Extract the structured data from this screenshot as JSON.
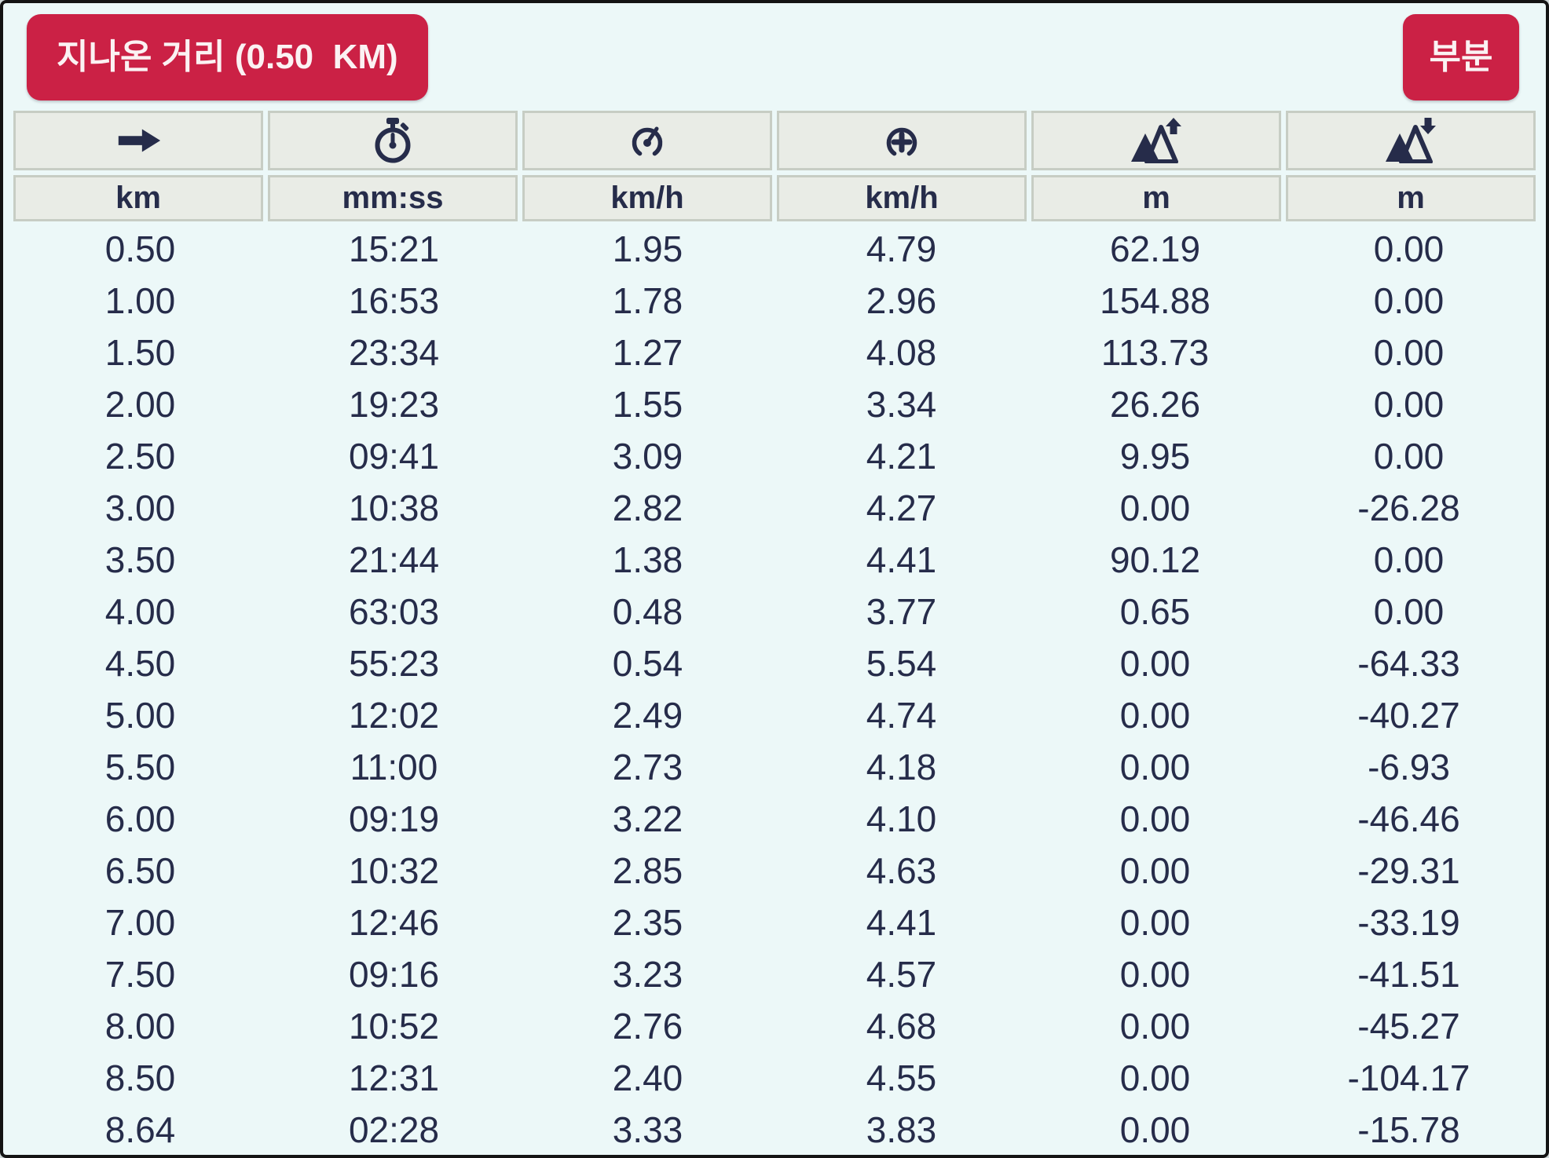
{
  "page": {
    "title_button": "지나온 거리 (0.50  KM)",
    "partial_button": "부분"
  },
  "colors": {
    "accent_red": "#cb2145",
    "text_navy": "#262c4a",
    "page_background": "#ecf8f8",
    "header_cell_background": "#e9ece6",
    "header_cell_border": "#c7cdc4",
    "frame_border": "#141414"
  },
  "table": {
    "columns": [
      {
        "icon": "arrow-right-icon",
        "meaning": "distance",
        "unit": "km"
      },
      {
        "icon": "stopwatch-icon",
        "meaning": "split-time",
        "unit": "mm:ss"
      },
      {
        "icon": "speedometer-icon",
        "meaning": "avg-speed",
        "unit": "km/h"
      },
      {
        "icon": "speedometer-plus-icon",
        "meaning": "max-speed",
        "unit": "km/h"
      },
      {
        "icon": "mountain-ascent-icon",
        "meaning": "ascent",
        "unit": "m"
      },
      {
        "icon": "mountain-descent-icon",
        "meaning": "descent",
        "unit": "m"
      }
    ],
    "rows": [
      [
        "0.50",
        "15:21",
        "1.95",
        "4.79",
        "62.19",
        "0.00"
      ],
      [
        "1.00",
        "16:53",
        "1.78",
        "2.96",
        "154.88",
        "0.00"
      ],
      [
        "1.50",
        "23:34",
        "1.27",
        "4.08",
        "113.73",
        "0.00"
      ],
      [
        "2.00",
        "19:23",
        "1.55",
        "3.34",
        "26.26",
        "0.00"
      ],
      [
        "2.50",
        "09:41",
        "3.09",
        "4.21",
        "9.95",
        "0.00"
      ],
      [
        "3.00",
        "10:38",
        "2.82",
        "4.27",
        "0.00",
        "-26.28"
      ],
      [
        "3.50",
        "21:44",
        "1.38",
        "4.41",
        "90.12",
        "0.00"
      ],
      [
        "4.00",
        "63:03",
        "0.48",
        "3.77",
        "0.65",
        "0.00"
      ],
      [
        "4.50",
        "55:23",
        "0.54",
        "5.54",
        "0.00",
        "-64.33"
      ],
      [
        "5.00",
        "12:02",
        "2.49",
        "4.74",
        "0.00",
        "-40.27"
      ],
      [
        "5.50",
        "11:00",
        "2.73",
        "4.18",
        "0.00",
        "-6.93"
      ],
      [
        "6.00",
        "09:19",
        "3.22",
        "4.10",
        "0.00",
        "-46.46"
      ],
      [
        "6.50",
        "10:32",
        "2.85",
        "4.63",
        "0.00",
        "-29.31"
      ],
      [
        "7.00",
        "12:46",
        "2.35",
        "4.41",
        "0.00",
        "-33.19"
      ],
      [
        "7.50",
        "09:16",
        "3.23",
        "4.57",
        "0.00",
        "-41.51"
      ],
      [
        "8.00",
        "10:52",
        "2.76",
        "4.68",
        "0.00",
        "-45.27"
      ],
      [
        "8.50",
        "12:31",
        "2.40",
        "4.55",
        "0.00",
        "-104.17"
      ],
      [
        "8.64",
        "02:28",
        "3.33",
        "3.83",
        "0.00",
        "-15.78"
      ]
    ]
  }
}
